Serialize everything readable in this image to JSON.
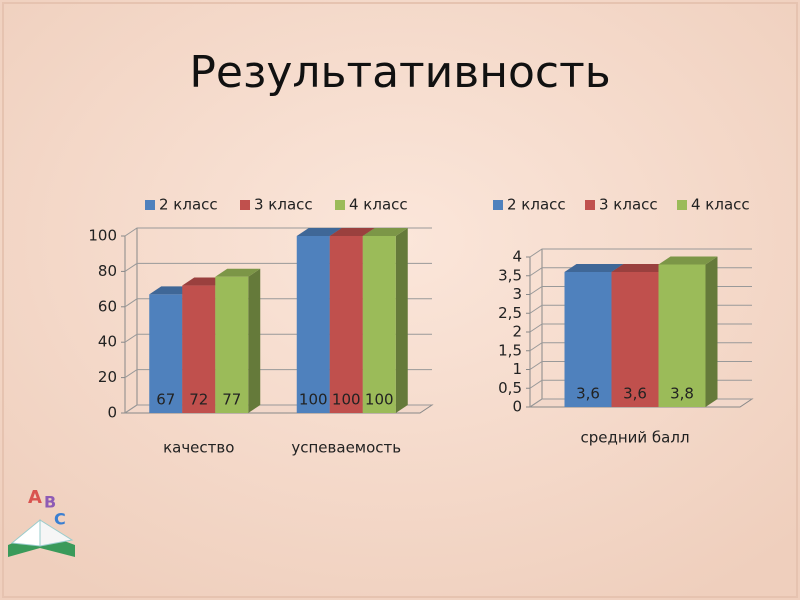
{
  "title": "Результативность",
  "chart_data": [
    {
      "type": "bar3d",
      "categories": [
        "качество",
        "успеваемость"
      ],
      "series": [
        {
          "name": "2 класс",
          "color": "#4f81bd",
          "values": [
            67,
            100
          ]
        },
        {
          "name": "3 класс",
          "color": "#c0504d",
          "values": [
            72,
            100
          ]
        },
        {
          "name": "4 класс",
          "color": "#9bbb59",
          "values": [
            77,
            100
          ]
        }
      ],
      "ylim": [
        0,
        100
      ],
      "yticks": [
        0,
        20,
        40,
        60,
        80,
        100
      ],
      "grid": true,
      "legend": "top"
    },
    {
      "type": "bar3d",
      "categories": [
        "средний балл"
      ],
      "series": [
        {
          "name": "2 класс",
          "color": "#4f81bd",
          "values": [
            3.6
          ],
          "value_labels": [
            "3,6"
          ]
        },
        {
          "name": "3 класс",
          "color": "#c0504d",
          "values": [
            3.6
          ],
          "value_labels": [
            "3,6"
          ]
        },
        {
          "name": "4 класс",
          "color": "#9bbb59",
          "values": [
            3.8
          ],
          "value_labels": [
            "3,8"
          ]
        }
      ],
      "ylim": [
        0,
        4
      ],
      "yticks": [
        0,
        {
          "value": 0.5,
          "label": "0,5"
        },
        1,
        {
          "value": 1.5,
          "label": "1,5"
        },
        2,
        {
          "value": 2.5,
          "label": "2,5"
        },
        3,
        {
          "value": 3.5,
          "label": "3,5"
        },
        4
      ],
      "grid": true,
      "legend": "top"
    }
  ]
}
